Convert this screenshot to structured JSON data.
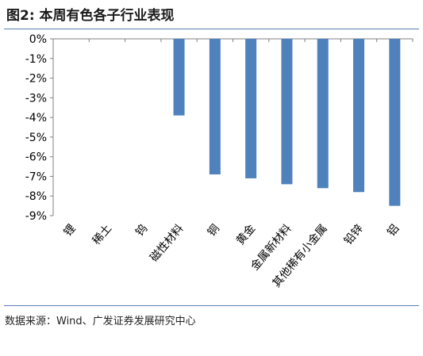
{
  "header": {
    "title": "图2:  本周有色各子行业表现"
  },
  "footer": {
    "source": "数据来源：Wind、广发证券发展研究中心"
  },
  "chart_data": {
    "type": "bar",
    "categories": [
      "锂",
      "稀土",
      "钨",
      "磁性材料",
      "铜",
      "黄金",
      "金属新材料",
      "其他稀有小金属",
      "铅锌",
      "铝"
    ],
    "values": [
      0,
      0,
      0,
      -3.9,
      -6.9,
      -7.1,
      -7.4,
      -7.6,
      -7.8,
      -8.5
    ],
    "ylim": [
      -9,
      0
    ],
    "yticks": [
      "0%",
      "-1%",
      "-2%",
      "-3%",
      "-4%",
      "-5%",
      "-6%",
      "-7%",
      "-8%",
      "-9%"
    ],
    "bar_color": "#4f81bd",
    "grid": false,
    "legend": "none"
  }
}
